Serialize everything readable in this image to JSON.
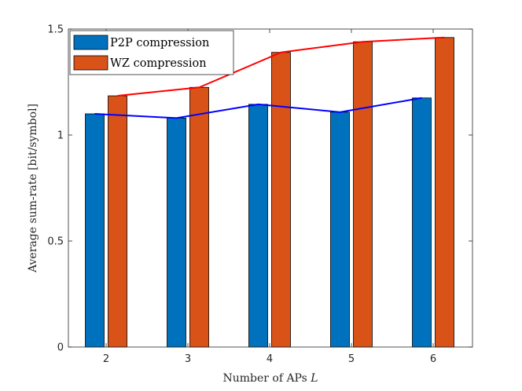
{
  "chart_data": {
    "type": "bar",
    "title": "",
    "xlabel": "Number of APs",
    "xlabel_var": "L",
    "ylabel": "Average sum-rate [bit/symbol]",
    "categories": [
      "2",
      "3",
      "4",
      "5",
      "6"
    ],
    "ylim": [
      0,
      1.5
    ],
    "yticks": [
      0,
      0.5,
      1,
      1.5
    ],
    "ytick_labels": [
      "0",
      "0.5",
      "1",
      "1.5"
    ],
    "grid": false,
    "legend_position": "top-left",
    "series": [
      {
        "name": "P2P compression",
        "values": [
          1.1,
          1.08,
          1.145,
          1.108,
          1.175
        ],
        "bar_color": "#0072BD",
        "line_color": "#0000FF"
      },
      {
        "name": "WZ compression",
        "values": [
          1.185,
          1.225,
          1.39,
          1.44,
          1.46
        ],
        "bar_color": "#D95319",
        "line_color": "#FF0000"
      }
    ]
  }
}
